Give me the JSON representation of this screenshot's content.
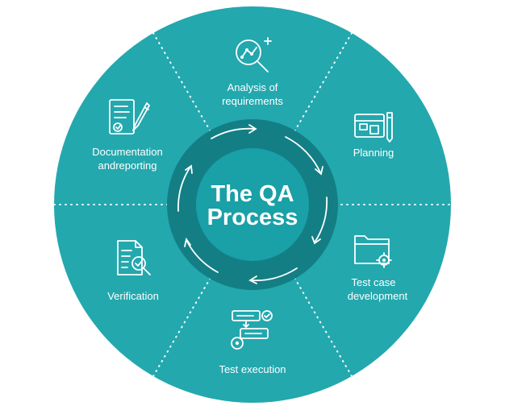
{
  "center": {
    "line1": "The QA",
    "line2": "Process"
  },
  "colors": {
    "outer": "#23a8ae",
    "ring": "#137f85",
    "inner": "#1aa0a7",
    "text": "#ffffff"
  },
  "segments": [
    {
      "id": "analysis",
      "icon": "magnifier-chart-icon",
      "lines": [
        "Analysis of",
        "requirements"
      ]
    },
    {
      "id": "planning",
      "icon": "blueprint-icon",
      "lines": [
        "Planning"
      ]
    },
    {
      "id": "test-case-development",
      "icon": "folder-gear-icon",
      "lines": [
        "Test case",
        "development"
      ]
    },
    {
      "id": "test-execution",
      "icon": "flowchart-gear-icon",
      "lines": [
        "Test execution"
      ]
    },
    {
      "id": "verification",
      "icon": "checklist-magnifier-icon",
      "lines": [
        "Verification"
      ]
    },
    {
      "id": "documentation",
      "icon": "document-pen-icon",
      "lines": [
        "Documentation",
        "andreporting"
      ]
    }
  ]
}
